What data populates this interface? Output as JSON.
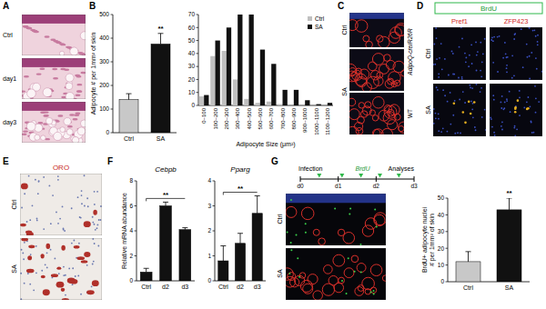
{
  "figure": {
    "letters": [
      "A",
      "B",
      "C",
      "D",
      "E",
      "F",
      "G"
    ],
    "image_panels": {
      "A": {
        "rows": [
          "Ctrl",
          "day1",
          "day3"
        ]
      },
      "C": {
        "rows": [
          "Ctrl",
          "SA"
        ],
        "side_labels": [
          "AdipoQ-cre/R26R",
          "WT"
        ]
      },
      "D": {
        "header": "BrdU",
        "columns": [
          "Pref1",
          "ZFP423"
        ],
        "rows": [
          "Ctrl",
          "SA"
        ]
      },
      "E": {
        "stain": "ORO",
        "rows": [
          "Ctrl",
          "SA"
        ]
      },
      "G": {
        "timeline": {
          "start": "Infection",
          "pulse": "BrdU",
          "end": "Analyses",
          "days": [
            "d0",
            "d1",
            "d2",
            "d3"
          ]
        },
        "rows": [
          "Ctrl",
          "SA"
        ]
      }
    }
  },
  "chart_data": [
    {
      "type": "bar",
      "ylabel": "Adipocyte # per 1mm² of skin",
      "categories": [
        "Ctrl",
        "SA"
      ],
      "values": [
        140,
        375
      ],
      "error": [
        25,
        45
      ],
      "colors": [
        "#c8c8c8",
        "#111111"
      ],
      "ylim": [
        0,
        500
      ],
      "yticks": [
        0,
        100,
        200,
        300,
        400,
        500
      ],
      "grid": false,
      "annotations": [
        "**"
      ]
    },
    {
      "type": "bar",
      "xlabel": "Adipocyte Size (μm²)",
      "categories": [
        "0~100",
        "100~200",
        "200~300",
        "300~400",
        "400~500",
        "500~600",
        "600~700",
        "700~800",
        "800~900",
        "900~1000",
        "1000~1100",
        "1100~1200"
      ],
      "series": [
        {
          "name": "Ctrl",
          "color": "#c0c0c0",
          "values": [
            7,
            38,
            42,
            20,
            5,
            2,
            3,
            1,
            0,
            0,
            0,
            0
          ]
        },
        {
          "name": "SA",
          "color": "#111111",
          "values": [
            8,
            50,
            60,
            70,
            70,
            43,
            32,
            12,
            12,
            4,
            1,
            2
          ]
        }
      ],
      "ylim": [
        0,
        70
      ],
      "yticks": [
        0,
        10,
        20,
        30,
        40,
        50,
        60,
        70
      ],
      "grid": false,
      "legend": "top-right"
    },
    {
      "type": "bar",
      "title": "Cebpb",
      "ylabel": "Relative mRNA abundance",
      "categories": [
        "Ctrl",
        "d2",
        "d3"
      ],
      "values": [
        0.7,
        6,
        4.1
      ],
      "error": [
        0.3,
        0.3,
        0.15
      ],
      "color": "#111111",
      "ylim": [
        0,
        8
      ],
      "yticks": [
        0,
        2,
        4,
        6,
        8
      ],
      "grid": false,
      "annotations": [
        "**"
      ]
    },
    {
      "type": "bar",
      "title": "Pparg",
      "categories": [
        "Ctrl",
        "d2",
        "d3"
      ],
      "values": [
        0.8,
        1.5,
        2.7
      ],
      "error": [
        0.6,
        0.4,
        0.7
      ],
      "color": "#111111",
      "ylim": [
        0,
        4
      ],
      "yticks": [
        0,
        1,
        2,
        3,
        4
      ],
      "grid": false,
      "annotations": [
        "**"
      ]
    },
    {
      "type": "bar",
      "ylabel": "BrdU+ adipocyte nuclei # per 1mm² of skin",
      "categories": [
        "Ctrl",
        "SA"
      ],
      "values": [
        12,
        43
      ],
      "error": [
        6,
        7
      ],
      "colors": [
        "#c8c8c8",
        "#111111"
      ],
      "ylim": [
        0,
        50
      ],
      "yticks": [
        0,
        10,
        20,
        30,
        40,
        50
      ],
      "grid": false,
      "annotations": [
        "**"
      ]
    }
  ]
}
